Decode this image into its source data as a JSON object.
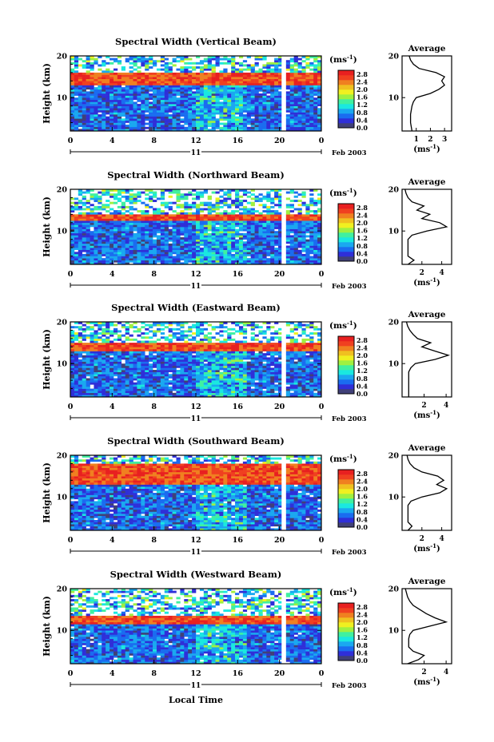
{
  "figure": {
    "xaxis_label": "Local Time",
    "date_label": "Feb 2003",
    "day_label": "11",
    "colorbar_unit": "(ms",
    "colorbar_unit_exp": "-1",
    "average_title": "Average"
  },
  "chart_data": [
    {
      "type": "heatmap",
      "title": "Spectral Width (Vertical Beam)",
      "xlabel": "",
      "ylabel": "Height (km)",
      "xlim": [
        0,
        24
      ],
      "ylim": [
        2,
        20
      ],
      "x_ticks": [
        "0",
        "4",
        "8",
        "12",
        "16",
        "20",
        "0"
      ],
      "y_ticks": [
        "20",
        "10"
      ],
      "colorbar": {
        "label": "(ms-1)",
        "min": 0.0,
        "max": 3.0,
        "ticks": [
          "2.8",
          "2.4",
          "2.0",
          "1.6",
          "1.2",
          "0.8",
          "0.4",
          "0.0"
        ],
        "colors": [
          "#404078",
          "#2f2fd8",
          "#1a6cf0",
          "#1aa8f0",
          "#1ae8e0",
          "#40f0a0",
          "#a0f040",
          "#f0f020",
          "#f0c020",
          "#f08020",
          "#f04020",
          "#e82020"
        ]
      },
      "data_gap_hours": [
        20.2,
        20.5
      ],
      "average_profile": {
        "title": "Average",
        "xlabel": "(ms-1)",
        "x_ticks": [
          "1",
          "2",
          "3"
        ],
        "xlim": [
          0,
          3.5
        ],
        "height_km": [
          2,
          4,
          6,
          8,
          9,
          10,
          11,
          12,
          13,
          14,
          15,
          16,
          17,
          18,
          19,
          20
        ],
        "values": [
          0.7,
          0.6,
          0.6,
          0.7,
          0.8,
          1.0,
          2.0,
          2.6,
          3.0,
          2.8,
          3.0,
          2.4,
          1.2,
          0.8,
          0.6,
          0.5
        ]
      }
    },
    {
      "type": "heatmap",
      "title": "Spectral Width (Northward Beam)",
      "xlabel": "",
      "ylabel": "Height (km)",
      "xlim": [
        0,
        24
      ],
      "ylim": [
        2,
        20
      ],
      "x_ticks": [
        "0",
        "4",
        "8",
        "12",
        "16",
        "20",
        "0"
      ],
      "y_ticks": [
        "20",
        "10"
      ],
      "colorbar": {
        "label": "(ms-1)",
        "min": 0.0,
        "max": 3.0,
        "ticks": [
          "2.8",
          "2.4",
          "2.0",
          "1.6",
          "1.2",
          "0.8",
          "0.4",
          "0.0"
        ]
      },
      "data_gap_hours": [
        20.2,
        20.5
      ],
      "average_profile": {
        "title": "Average",
        "xlabel": "(ms-1)",
        "x_ticks": [
          "2",
          "4"
        ],
        "xlim": [
          0,
          5
        ],
        "height_km": [
          2,
          3,
          4,
          6,
          8,
          9,
          10,
          11,
          12,
          13,
          14,
          15,
          16,
          17,
          18,
          19,
          20
        ],
        "values": [
          0.6,
          1.2,
          0.6,
          0.6,
          0.6,
          1.0,
          2.5,
          4.5,
          3.8,
          2.0,
          2.8,
          1.5,
          2.2,
          1.0,
          0.6,
          0.4,
          0.3
        ]
      }
    },
    {
      "type": "heatmap",
      "title": "Spectral Width (Eastward Beam)",
      "xlabel": "",
      "ylabel": "Height (km)",
      "xlim": [
        0,
        24
      ],
      "ylim": [
        2,
        20
      ],
      "x_ticks": [
        "0",
        "4",
        "8",
        "12",
        "16",
        "20",
        "0"
      ],
      "y_ticks": [
        "20",
        "10"
      ],
      "colorbar": {
        "label": "(ms-1)",
        "min": 0.0,
        "max": 3.0,
        "ticks": [
          "2.8",
          "2.4",
          "2.0",
          "1.6",
          "1.2",
          "0.8",
          "0.4",
          "0.0"
        ]
      },
      "data_gap_hours": [
        20.2,
        20.5
      ],
      "average_profile": {
        "title": "Average",
        "xlabel": "(ms-1)",
        "x_ticks": [
          "2",
          "4"
        ],
        "xlim": [
          0,
          4.5
        ],
        "height_km": [
          2,
          4,
          6,
          8,
          9,
          10,
          11,
          12,
          13,
          14,
          15,
          16,
          17,
          18,
          19,
          20
        ],
        "values": [
          0.6,
          0.6,
          0.6,
          0.6,
          0.8,
          1.2,
          3.0,
          4.2,
          3.0,
          1.8,
          2.6,
          1.4,
          1.0,
          0.7,
          0.5,
          0.4
        ]
      }
    },
    {
      "type": "heatmap",
      "title": "Spectral Width (Southward Beam)",
      "xlabel": "",
      "ylabel": "Height (km)",
      "xlim": [
        0,
        24
      ],
      "ylim": [
        2,
        20
      ],
      "x_ticks": [
        "0",
        "4",
        "8",
        "12",
        "16",
        "20",
        "0"
      ],
      "y_ticks": [
        "20",
        "10"
      ],
      "colorbar": {
        "label": "(ms-1)",
        "min": 0.0,
        "max": 3.0,
        "ticks": [
          "2.8",
          "2.4",
          "2.0",
          "1.6",
          "1.2",
          "0.8",
          "0.4",
          "0.0"
        ]
      },
      "data_gap_hours": [
        20.2,
        20.5
      ],
      "average_profile": {
        "title": "Average",
        "xlabel": "(ms-1)",
        "x_ticks": [
          "2",
          "4"
        ],
        "xlim": [
          0,
          5
        ],
        "height_km": [
          2,
          3,
          4,
          6,
          8,
          9,
          10,
          11,
          12,
          13,
          14,
          15,
          16,
          17,
          18,
          19,
          20
        ],
        "values": [
          0.6,
          1.0,
          0.6,
          0.6,
          0.6,
          0.9,
          2.0,
          3.8,
          4.5,
          3.5,
          4.2,
          3.6,
          2.0,
          1.2,
          0.8,
          0.6,
          0.5
        ]
      }
    },
    {
      "type": "heatmap",
      "title": "Spectral Width (Westward Beam)",
      "xlabel": "Local Time",
      "ylabel": "Height (km)",
      "xlim": [
        0,
        24
      ],
      "ylim": [
        2,
        20
      ],
      "x_ticks": [
        "0",
        "4",
        "8",
        "12",
        "16",
        "20",
        "0"
      ],
      "y_ticks": [
        "20",
        "10"
      ],
      "colorbar": {
        "label": "(ms-1)",
        "min": 0.0,
        "max": 3.0,
        "ticks": [
          "2.8",
          "2.4",
          "2.0",
          "1.6",
          "1.2",
          "0.8",
          "0.4",
          "0.0"
        ]
      },
      "data_gap_hours": [
        20.2,
        20.5
      ],
      "average_profile": {
        "title": "Average",
        "xlabel": "(ms-1)",
        "x_ticks": [
          "2",
          "4"
        ],
        "xlim": [
          0,
          4.5
        ],
        "height_km": [
          2,
          3,
          4,
          5,
          6,
          8,
          9,
          10,
          11,
          12,
          13,
          14,
          15,
          16,
          17,
          18,
          19,
          20
        ],
        "values": [
          0.5,
          1.5,
          2.0,
          1.0,
          0.6,
          0.6,
          0.7,
          1.0,
          2.5,
          4.0,
          3.0,
          2.2,
          1.6,
          1.0,
          0.7,
          0.5,
          0.4,
          0.3
        ]
      }
    }
  ]
}
